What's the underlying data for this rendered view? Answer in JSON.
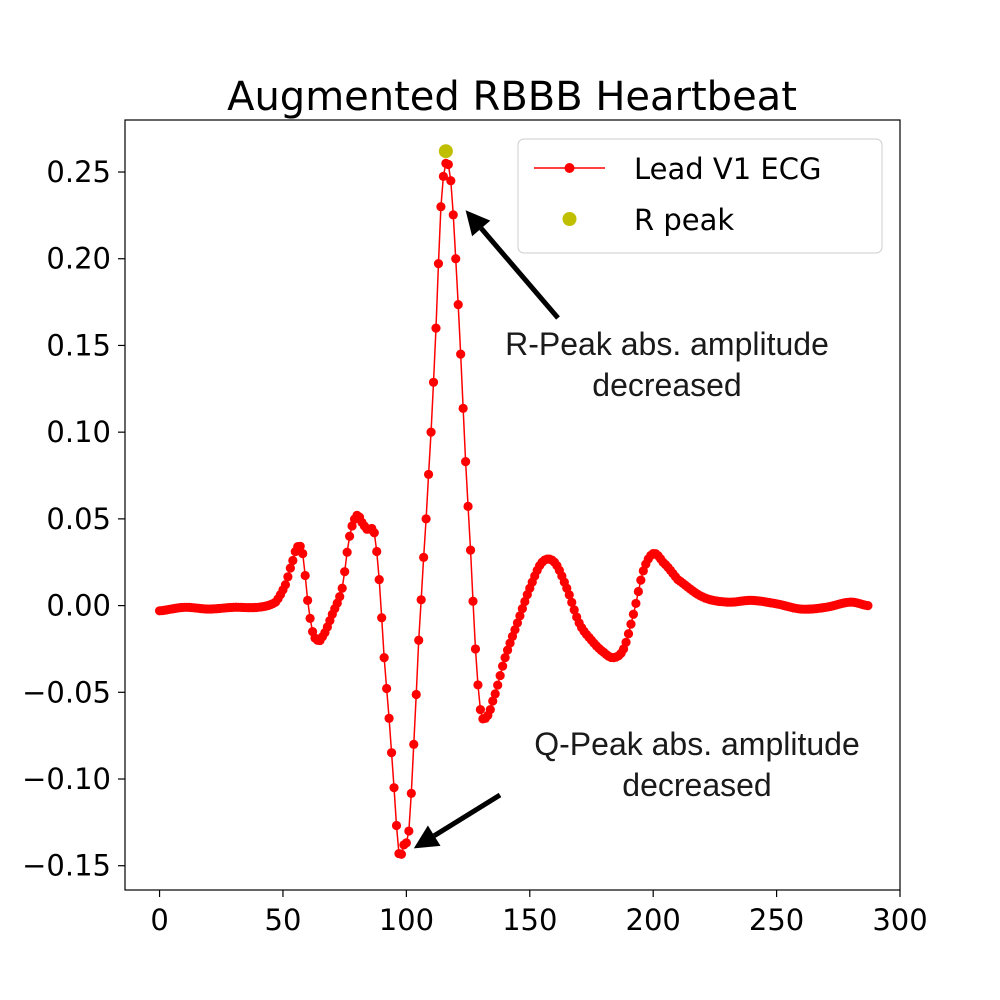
{
  "chart_data": {
    "type": "line",
    "title": "Augmented RBBB Heartbeat",
    "xlabel": "",
    "ylabel": "",
    "xlim": [
      -14,
      300
    ],
    "ylim": [
      -0.164,
      0.28
    ],
    "xticks": [
      0,
      50,
      100,
      150,
      200,
      250,
      300
    ],
    "xtick_labels": [
      "0",
      "50",
      "100",
      "150",
      "200",
      "250",
      "300"
    ],
    "yticks": [
      -0.15,
      -0.1,
      -0.05,
      0.0,
      0.05,
      0.1,
      0.15,
      0.2,
      0.25
    ],
    "ytick_labels": [
      "−0.15",
      "−0.10",
      "−0.05",
      "0.00",
      "0.05",
      "0.10",
      "0.15",
      "0.20",
      "0.25"
    ],
    "grid": false,
    "legend": "top-right",
    "series": [
      {
        "name": "Lead V1 ECG",
        "color": "#ff0000",
        "marker": "circle",
        "points": [
          [
            0,
            -0.003
          ],
          [
            10,
            -0.001
          ],
          [
            20,
            -0.002
          ],
          [
            30,
            -0.001
          ],
          [
            40,
            -0.001
          ],
          [
            47,
            0.002
          ],
          [
            51,
            0.012
          ],
          [
            54,
            0.026
          ],
          [
            56,
            0.034
          ],
          [
            58,
            0.03
          ],
          [
            60,
            0.003
          ],
          [
            62,
            -0.015
          ],
          [
            64,
            -0.02
          ],
          [
            66,
            -0.018
          ],
          [
            70,
            -0.005
          ],
          [
            74,
            0.01
          ],
          [
            77,
            0.04
          ],
          [
            80,
            0.052
          ],
          [
            82,
            0.048
          ],
          [
            84,
            0.044
          ],
          [
            87,
            0.042
          ],
          [
            89,
            0.015
          ],
          [
            91,
            -0.03
          ],
          [
            93,
            -0.065
          ],
          [
            95,
            -0.105
          ],
          [
            97,
            -0.143
          ],
          [
            99,
            -0.138
          ],
          [
            101,
            -0.13
          ],
          [
            103,
            -0.08
          ],
          [
            105,
            -0.02
          ],
          [
            108,
            0.05
          ],
          [
            110,
            0.1
          ],
          [
            112,
            0.16
          ],
          [
            114,
            0.23
          ],
          [
            116,
            0.255
          ],
          [
            118,
            0.245
          ],
          [
            120,
            0.2
          ],
          [
            122,
            0.145
          ],
          [
            124,
            0.083
          ],
          [
            126,
            0.032
          ],
          [
            128,
            -0.025
          ],
          [
            130,
            -0.06
          ],
          [
            132,
            -0.065
          ],
          [
            135,
            -0.055
          ],
          [
            140,
            -0.03
          ],
          [
            145,
            -0.01
          ],
          [
            150,
            0.01
          ],
          [
            155,
            0.025
          ],
          [
            160,
            0.025
          ],
          [
            165,
            0.01
          ],
          [
            170,
            -0.01
          ],
          [
            175,
            -0.02
          ],
          [
            180,
            -0.027
          ],
          [
            184,
            -0.03
          ],
          [
            188,
            -0.025
          ],
          [
            192,
            -0.005
          ],
          [
            196,
            0.02
          ],
          [
            200,
            0.03
          ],
          [
            204,
            0.025
          ],
          [
            210,
            0.015
          ],
          [
            220,
            0.005
          ],
          [
            230,
            0.002
          ],
          [
            240,
            0.003
          ],
          [
            250,
            0.001
          ],
          [
            260,
            -0.002
          ],
          [
            270,
            -0.001
          ],
          [
            280,
            0.002
          ],
          [
            287,
            0.0
          ]
        ]
      },
      {
        "name": "R peak",
        "color": "#bfbf00",
        "marker": "circle",
        "points": [
          [
            116,
            0.262
          ]
        ]
      }
    ],
    "annotations": [
      {
        "lines": [
          "R-Peak abs. amplitude",
          "decreased"
        ],
        "arrow_to": [
          124,
          0.228
        ],
        "text_anchor": [
          167,
          0.14
        ]
      },
      {
        "lines": [
          "Q-Peak abs. amplitude",
          "decreased"
        ],
        "arrow_to": [
          103,
          -0.14
        ],
        "text_anchor": [
          180,
          -0.1
        ]
      }
    ]
  }
}
